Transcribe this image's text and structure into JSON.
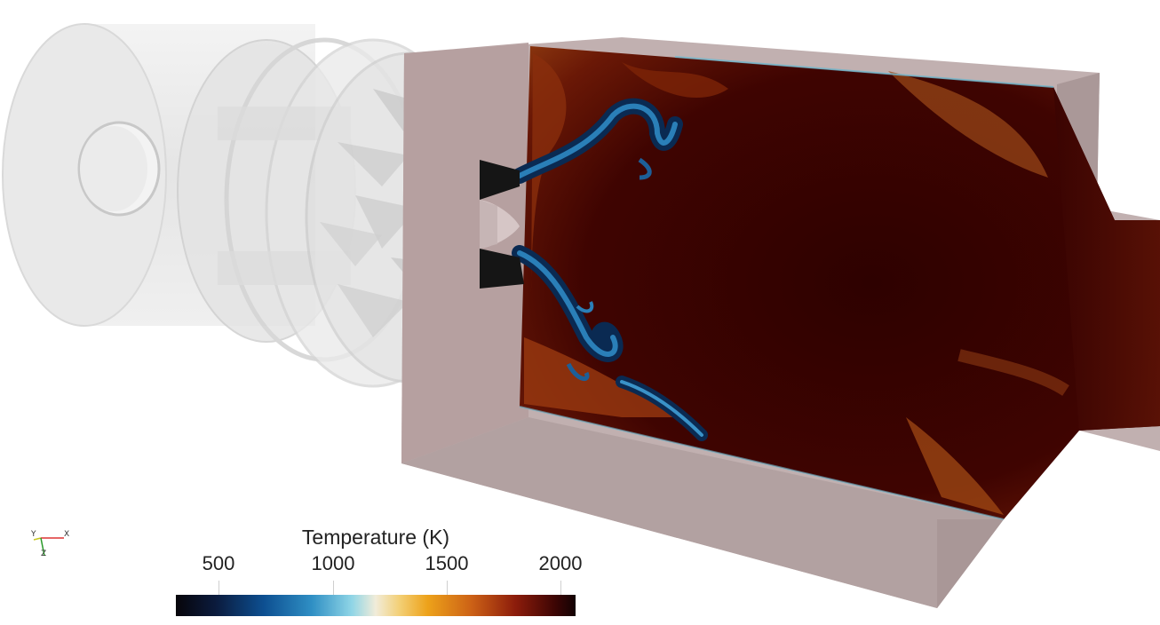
{
  "colorbar": {
    "title": "Temperature (K)",
    "ticks": [
      "500",
      "1000",
      "1500",
      "2000"
    ]
  },
  "axes": {
    "x": "X",
    "y": "Y",
    "z": "Z"
  },
  "colors": {
    "background": "#ffffff",
    "flame": "#3a0200",
    "housing": "#bca8a8"
  }
}
